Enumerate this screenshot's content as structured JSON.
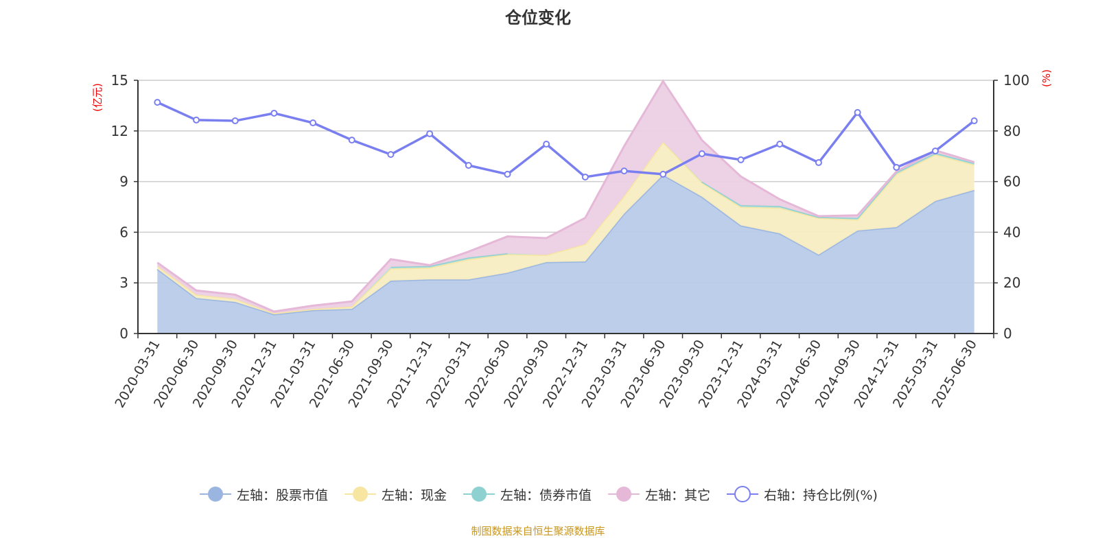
{
  "chart_data": {
    "type": "area",
    "title": "仓位变化",
    "left_axis_label": "(亿元)",
    "right_axis_label": "(%)",
    "categories": [
      "2020-03-31",
      "2020-06-30",
      "2020-09-30",
      "2020-12-31",
      "2021-03-31",
      "2021-06-30",
      "2021-09-30",
      "2021-12-31",
      "2022-03-31",
      "2022-06-30",
      "2022-09-30",
      "2022-12-31",
      "2023-03-31",
      "2023-06-30",
      "2023-09-30",
      "2023-12-31",
      "2024-03-31",
      "2024-06-30",
      "2024-09-30",
      "2024-12-31",
      "2025-03-31",
      "2025-06-30"
    ],
    "left_ylim": [
      0,
      15
    ],
    "left_ticks": [
      0,
      3,
      6,
      9,
      12,
      15
    ],
    "right_ylim": [
      0,
      100
    ],
    "right_ticks": [
      0,
      20,
      40,
      60,
      80,
      100
    ],
    "grid": true,
    "legend_position": "bottom",
    "stacked": true,
    "series": [
      {
        "name": "左轴：股票市值",
        "axis": "left",
        "color": "#9ab6e0",
        "fill": "#b8cbe8",
        "values": [
          3.82,
          2.1,
          1.87,
          1.14,
          1.38,
          1.46,
          3.13,
          3.2,
          3.2,
          3.6,
          4.23,
          4.27,
          7.1,
          9.4,
          8.1,
          6.4,
          5.93,
          4.67,
          6.1,
          6.3,
          7.85,
          8.5
        ]
      },
      {
        "name": "左轴：现金",
        "axis": "left",
        "color": "#f7e6a2",
        "fill": "#f8edc2",
        "values": [
          0.18,
          0.2,
          0.18,
          0.06,
          0.07,
          0.14,
          0.72,
          0.7,
          1.2,
          1.1,
          0.42,
          1.03,
          1.05,
          1.95,
          0.85,
          1.1,
          1.52,
          2.18,
          0.65,
          3.15,
          2.75,
          1.5
        ]
      },
      {
        "name": "左轴：债券市值",
        "axis": "left",
        "color": "#8fd1d1",
        "fill": "#b4e0e0",
        "values": [
          0,
          0,
          0,
          0,
          0,
          0,
          0.1,
          0.1,
          0.1,
          0.05,
          0,
          0,
          0,
          0,
          0.05,
          0.1,
          0.1,
          0.05,
          0.1,
          0.1,
          0.1,
          0.1
        ]
      },
      {
        "name": "左轴：其它",
        "axis": "left",
        "color": "#e6b8d8",
        "fill": "#ecd0e4",
        "values": [
          0.2,
          0.25,
          0.25,
          0.1,
          0.2,
          0.3,
          0.45,
          0.05,
          0.35,
          1.0,
          1.0,
          1.55,
          2.95,
          3.6,
          2.45,
          1.7,
          0.4,
          0.05,
          0.15,
          0.05,
          0.15,
          0.05
        ]
      },
      {
        "name": "右轴：持仓比例(%)",
        "axis": "right",
        "type": "line",
        "color": "#7a7ff0",
        "values": [
          91.3,
          84.3,
          84.0,
          87.0,
          83.2,
          76.4,
          70.7,
          78.9,
          66.4,
          62.9,
          74.8,
          61.8,
          64.2,
          62.9,
          71.0,
          68.6,
          74.8,
          67.5,
          87.3,
          65.6,
          72.1,
          84.0
        ]
      }
    ]
  },
  "footer": "制图数据来自恒生聚源数据库"
}
